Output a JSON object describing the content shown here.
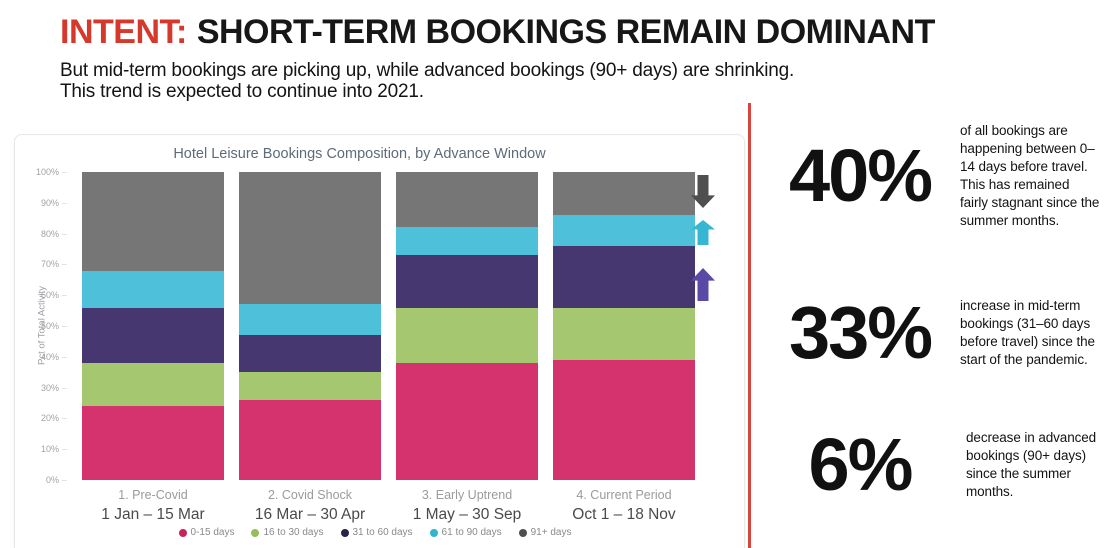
{
  "header": {
    "title_accent": "INTENT:",
    "title_rest": "SHORT-TERM BOOKINGS REMAIN DOMINANT",
    "subtitle_line1": "But mid-term bookings are picking up, while advanced bookings (90+ days) are shrinking.",
    "subtitle_line2": "This trend is expected to continue into 2021."
  },
  "chart_data": {
    "type": "bar",
    "stacked": true,
    "title": "Hotel Leisure Bookings Composition, by Advance Window",
    "ylabel": "Pct of Total Activity",
    "ylim": [
      0,
      100
    ],
    "ytick_step": 10,
    "ytick_suffix": "%",
    "legend_position": "bottom",
    "grid": false,
    "categories": [
      {
        "label": "1. Pre-Covid",
        "range": "1 Jan – 15 Mar"
      },
      {
        "label": "2. Covid Shock",
        "range": "16 Mar – 30 Apr"
      },
      {
        "label": "3. Early Uptrend",
        "range": "1 May – 30 Sep"
      },
      {
        "label": "4. Current Period",
        "range": "Oct 1 – 18 Nov"
      }
    ],
    "series": [
      {
        "name": "0-15 days",
        "color": "#d4336e",
        "legend_color": "#c62458",
        "values": [
          24,
          26,
          38,
          39
        ]
      },
      {
        "name": "16 to 30 days",
        "color": "#a5c76f",
        "legend_color": "#96bd59",
        "values": [
          14,
          9,
          18,
          17
        ]
      },
      {
        "name": "31 to 60 days",
        "color": "#463770",
        "legend_color": "#2c2249",
        "values": [
          18,
          12,
          17,
          20
        ]
      },
      {
        "name": "61 to 90 days",
        "color": "#4ec0d9",
        "legend_color": "#2fb3d0",
        "values": [
          12,
          10,
          9,
          10
        ]
      },
      {
        "name": "91+ days",
        "color": "#767676",
        "legend_color": "#4f4f4f",
        "values": [
          32,
          43,
          18,
          14
        ]
      }
    ]
  },
  "trend_arrows": [
    {
      "name": "91-plus-days-trend",
      "direction": "down",
      "color": "#4f4f4f",
      "height": 33
    },
    {
      "name": "61-90-days-trend",
      "direction": "up",
      "color": "#37b6d4",
      "height": 25
    },
    {
      "name": "31-60-days-trend",
      "direction": "up",
      "color": "#5a4aa5",
      "height": 33
    }
  ],
  "stats": [
    {
      "value": "40%",
      "description": "of all bookings are happening between 0–14 days before travel. This has remained fairly stagnant since the summer months."
    },
    {
      "value": "33%",
      "description": "increase in mid-term bookings (31–60 days before travel) since the start of the pandemic."
    },
    {
      "value": "6%",
      "description": "decrease in advanced bookings (90+ days) since the summer months."
    }
  ],
  "colors": {
    "title_accent": "#d5392b",
    "divider": "#d8453c"
  }
}
